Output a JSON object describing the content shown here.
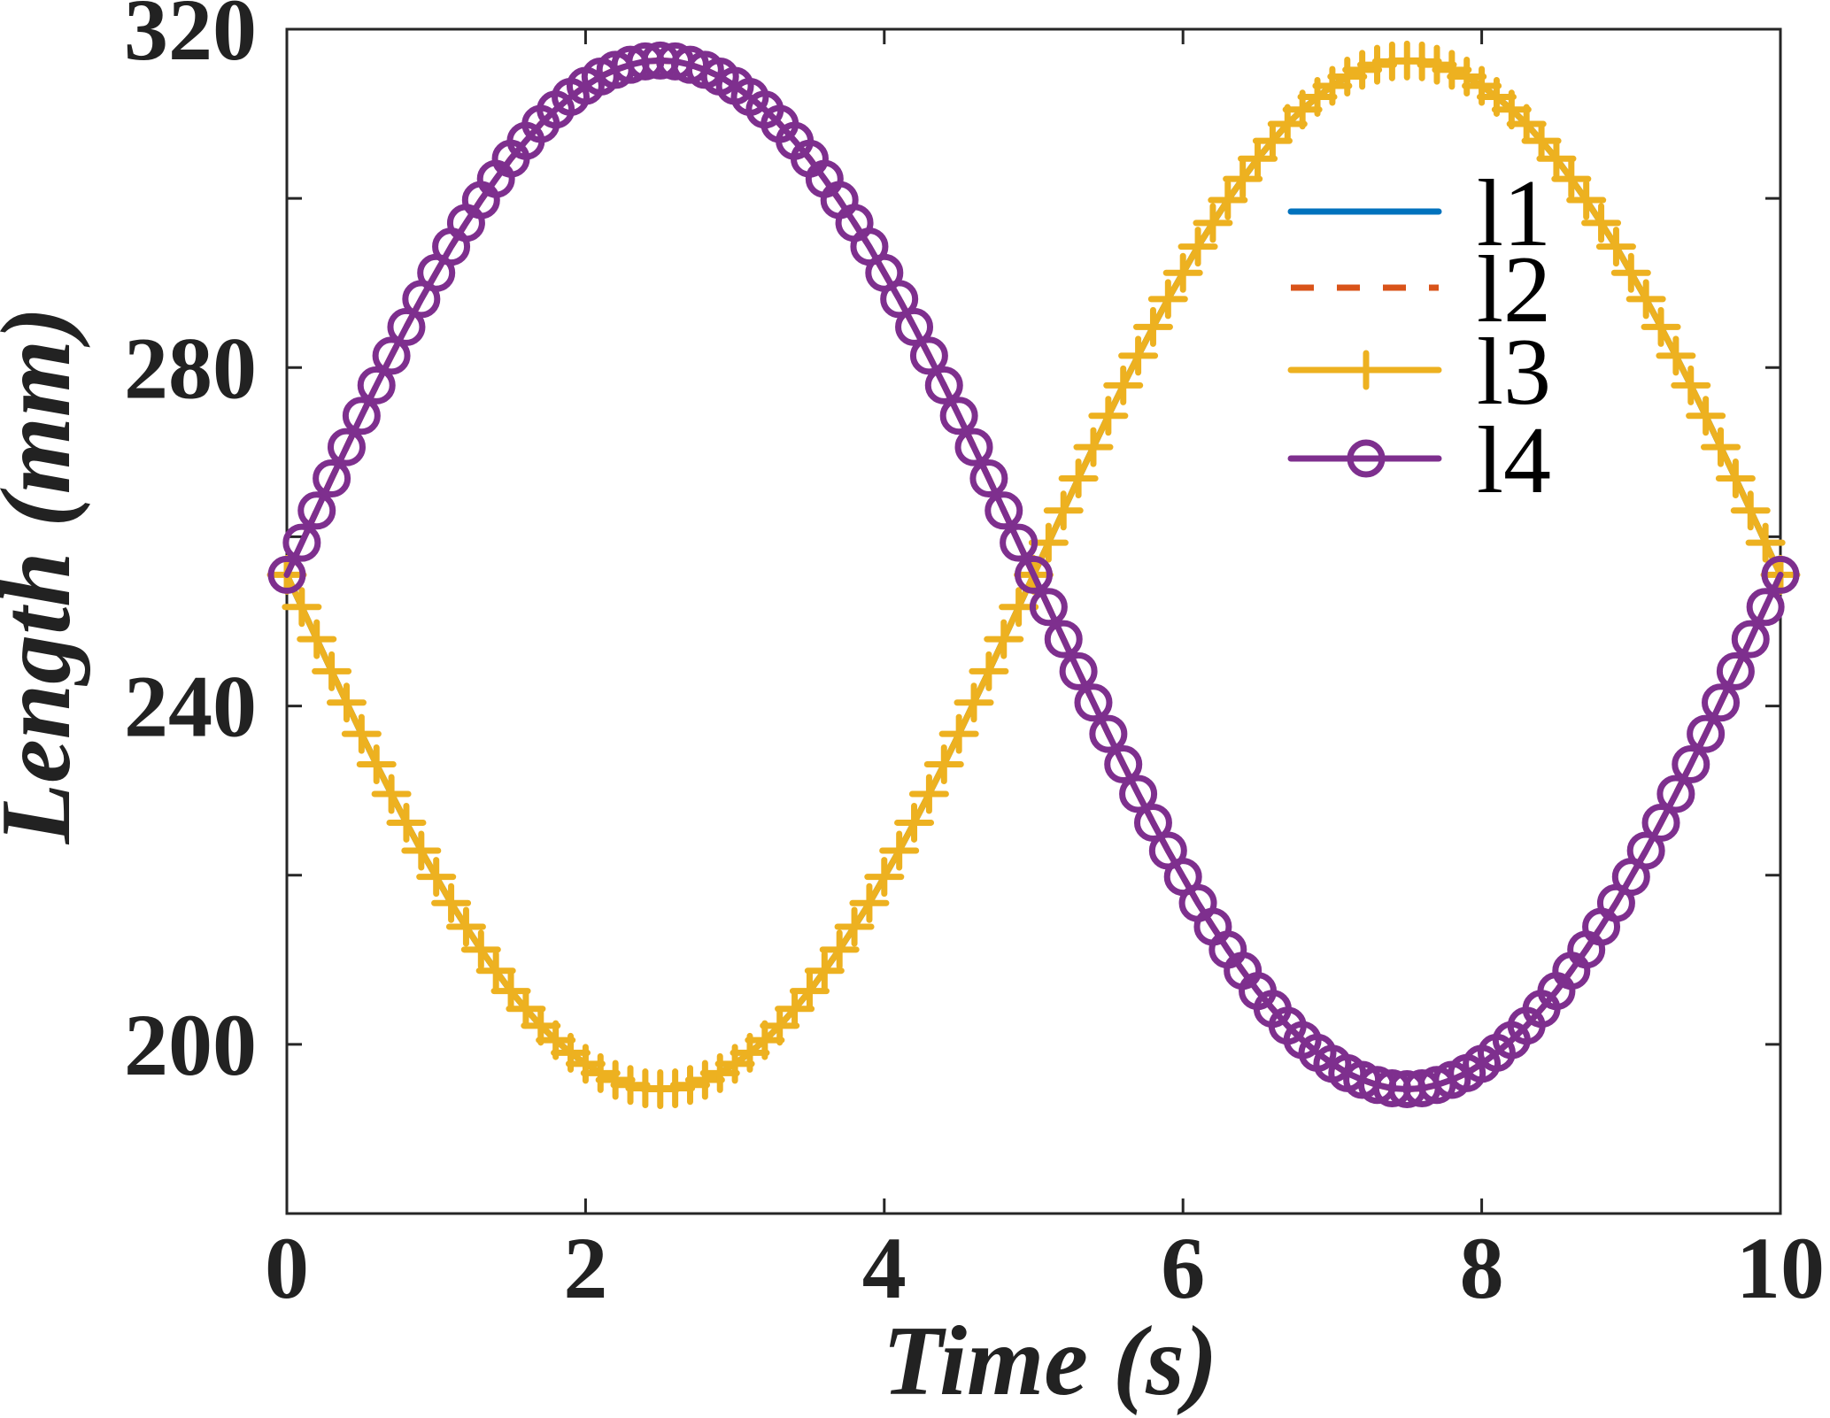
{
  "chart_data": {
    "type": "line",
    "title": "",
    "xlabel": "Time (s)",
    "ylabel": "Length (mm)",
    "xlim": [
      0,
      10
    ],
    "ylim": [
      180,
      320
    ],
    "xticks": [
      0,
      2,
      4,
      6,
      8,
      10
    ],
    "xtick_labels": [
      "0",
      "2",
      "4",
      "6",
      "8",
      "10"
    ],
    "yticks": [
      200,
      240,
      280,
      320
    ],
    "ytick_labels": [
      "200",
      "240",
      "280",
      "320"
    ],
    "yticks_minor": [
      180,
      220,
      260,
      300
    ],
    "grid": false,
    "legend_position": "top-right",
    "x_start": 0,
    "x_step": 0.1,
    "series": [
      {
        "name": "l1",
        "color": "#0072BD",
        "style": "solid",
        "marker": "none",
        "values": [
          255.5,
          251.7,
          247.9,
          244.1,
          240.4,
          236.7,
          233.1,
          229.6,
          226.2,
          222.9,
          219.8,
          216.7,
          213.9,
          211.2,
          208.7,
          206.3,
          204.2,
          202.2,
          200.5,
          199.0,
          197.7,
          196.6,
          195.8,
          195.2,
          194.8,
          194.7,
          194.8,
          195.2,
          195.8,
          196.6,
          197.7,
          199.0,
          200.5,
          202.2,
          204.2,
          206.3,
          208.7,
          211.2,
          213.9,
          216.7,
          219.8,
          222.9,
          226.2,
          229.6,
          233.1,
          236.7,
          240.4,
          244.1,
          247.9,
          251.7,
          255.5,
          259.3,
          263.1,
          266.9,
          270.6,
          274.3,
          277.9,
          281.4,
          284.8,
          288.1,
          291.2,
          294.3,
          297.1,
          299.8,
          302.3,
          304.7,
          306.8,
          308.8,
          310.5,
          312.0,
          313.3,
          314.4,
          315.2,
          315.8,
          316.2,
          316.3,
          316.2,
          315.8,
          315.2,
          314.4,
          313.3,
          312.0,
          310.5,
          308.8,
          306.8,
          304.7,
          302.3,
          299.8,
          297.1,
          294.3,
          291.2,
          288.1,
          284.8,
          281.4,
          277.9,
          274.3,
          270.6,
          266.9,
          263.1,
          259.3,
          255.5
        ]
      },
      {
        "name": "l2",
        "color": "#D95319",
        "style": "dashed",
        "marker": "none",
        "values": [
          255.5,
          259.3,
          263.1,
          266.9,
          270.6,
          274.3,
          277.9,
          281.4,
          284.8,
          288.1,
          291.2,
          294.3,
          297.1,
          299.8,
          302.3,
          304.7,
          306.8,
          308.8,
          310.5,
          312.0,
          313.3,
          314.4,
          315.2,
          315.8,
          316.2,
          316.3,
          316.2,
          315.8,
          315.2,
          314.4,
          313.3,
          312.0,
          310.5,
          308.8,
          306.8,
          304.7,
          302.3,
          299.8,
          297.1,
          294.3,
          291.2,
          288.1,
          284.8,
          281.4,
          277.9,
          274.3,
          270.6,
          266.9,
          263.1,
          259.3,
          255.5,
          251.7,
          247.9,
          244.1,
          240.4,
          236.7,
          233.1,
          229.6,
          226.2,
          222.9,
          219.8,
          216.7,
          213.9,
          211.2,
          208.7,
          206.3,
          204.2,
          202.2,
          200.5,
          199.0,
          197.7,
          196.6,
          195.8,
          195.2,
          194.8,
          194.7,
          194.8,
          195.2,
          195.8,
          196.6,
          197.7,
          199.0,
          200.5,
          202.2,
          204.2,
          206.3,
          208.7,
          211.2,
          213.9,
          216.7,
          219.8,
          222.9,
          226.2,
          229.6,
          233.1,
          236.7,
          240.4,
          244.1,
          247.9,
          251.7,
          255.5
        ]
      },
      {
        "name": "l3",
        "color": "#EDB120",
        "style": "solid",
        "marker": "plus",
        "values": [
          255.5,
          251.7,
          247.9,
          244.1,
          240.4,
          236.7,
          233.1,
          229.6,
          226.2,
          222.9,
          219.8,
          216.7,
          213.9,
          211.2,
          208.7,
          206.3,
          204.2,
          202.2,
          200.5,
          199.0,
          197.7,
          196.6,
          195.8,
          195.2,
          194.8,
          194.7,
          194.8,
          195.2,
          195.8,
          196.6,
          197.7,
          199.0,
          200.5,
          202.2,
          204.2,
          206.3,
          208.7,
          211.2,
          213.9,
          216.7,
          219.8,
          222.9,
          226.2,
          229.6,
          233.1,
          236.7,
          240.4,
          244.1,
          247.9,
          251.7,
          255.5,
          259.3,
          263.1,
          266.9,
          270.6,
          274.3,
          277.9,
          281.4,
          284.8,
          288.1,
          291.2,
          294.3,
          297.1,
          299.8,
          302.3,
          304.7,
          306.8,
          308.8,
          310.5,
          312.0,
          313.3,
          314.4,
          315.2,
          315.8,
          316.2,
          316.3,
          316.2,
          315.8,
          315.2,
          314.4,
          313.3,
          312.0,
          310.5,
          308.8,
          306.8,
          304.7,
          302.3,
          299.8,
          297.1,
          294.3,
          291.2,
          288.1,
          284.8,
          281.4,
          277.9,
          274.3,
          270.6,
          266.9,
          263.1,
          259.3,
          255.5
        ]
      },
      {
        "name": "l4",
        "color": "#7E2F8E",
        "style": "solid",
        "marker": "circle",
        "values": [
          255.5,
          259.3,
          263.1,
          266.9,
          270.6,
          274.3,
          277.9,
          281.4,
          284.8,
          288.1,
          291.2,
          294.3,
          297.1,
          299.8,
          302.3,
          304.7,
          306.8,
          308.8,
          310.5,
          312.0,
          313.3,
          314.4,
          315.2,
          315.8,
          316.2,
          316.3,
          316.2,
          315.8,
          315.2,
          314.4,
          313.3,
          312.0,
          310.5,
          308.8,
          306.8,
          304.7,
          302.3,
          299.8,
          297.1,
          294.3,
          291.2,
          288.1,
          284.8,
          281.4,
          277.9,
          274.3,
          270.6,
          266.9,
          263.1,
          259.3,
          255.5,
          251.7,
          247.9,
          244.1,
          240.4,
          236.7,
          233.1,
          229.6,
          226.2,
          222.9,
          219.8,
          216.7,
          213.9,
          211.2,
          208.7,
          206.3,
          204.2,
          202.2,
          200.5,
          199.0,
          197.7,
          196.6,
          195.8,
          195.2,
          194.8,
          194.7,
          194.8,
          195.2,
          195.8,
          196.6,
          197.7,
          199.0,
          200.5,
          202.2,
          204.2,
          206.3,
          208.7,
          211.2,
          213.9,
          216.7,
          219.8,
          222.9,
          226.2,
          229.6,
          233.1,
          236.7,
          240.4,
          244.1,
          247.9,
          251.7,
          255.5
        ]
      }
    ]
  }
}
